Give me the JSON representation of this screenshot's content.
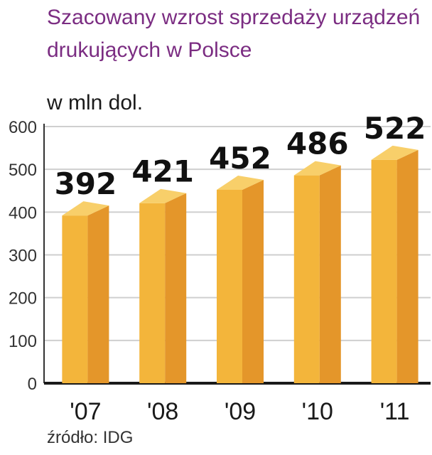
{
  "chart_data": {
    "type": "bar",
    "title": "Szacowany wzrost sprzedaży urządzeń drukujących w Polsce",
    "unit_label": "w mln dol.",
    "categories": [
      "'07",
      "'08",
      "'09",
      "'10",
      "'11"
    ],
    "values": [
      392,
      421,
      452,
      486,
      522
    ],
    "data_labels": [
      "392",
      "421",
      "452",
      "486",
      "522"
    ],
    "y_ticks": [
      "0",
      "100",
      "200",
      "300",
      "400",
      "500",
      "600"
    ],
    "ylim": [
      0,
      600
    ],
    "grid": true,
    "source": "źródło: IDG",
    "colors": {
      "bar_front": "#f3b53b",
      "bar_side": "#e4962a",
      "bar_top": "#f8cf6a",
      "grid": "#cfcfcf",
      "title": "#7b2d82"
    }
  }
}
